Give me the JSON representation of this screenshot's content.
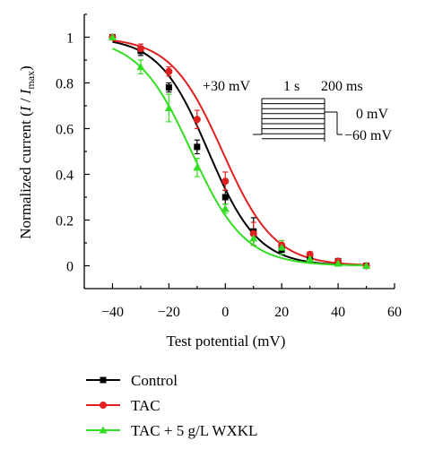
{
  "chart_data": {
    "type": "line",
    "xlabel": "Test potential (mV)",
    "ylabel_main": "Normalized current (",
    "ylabel_I": "I",
    "ylabel_slash": " / ",
    "ylabel_Imax_I": "I",
    "ylabel_Imax_sub": "max",
    "ylabel_end": ")",
    "xlim": [
      -50,
      60
    ],
    "ylim": [
      -0.1,
      1.1
    ],
    "x_ticks": [
      -40,
      -20,
      0,
      20,
      40,
      60
    ],
    "x_tick_labels": [
      "−40",
      "−20",
      "0",
      "20",
      "40",
      "60"
    ],
    "y_ticks": [
      0,
      0.2,
      0.4,
      0.6,
      0.8,
      1
    ],
    "y_tick_labels": [
      "0",
      "0.2",
      "0.4",
      "0.6",
      "0.8",
      "1"
    ],
    "x": [
      -40,
      -30,
      -20,
      -10,
      0,
      10,
      20,
      30,
      40,
      50
    ],
    "series": [
      {
        "name": "Control",
        "color": "#000000",
        "marker": "square",
        "values": [
          1.0,
          0.94,
          0.78,
          0.52,
          0.3,
          0.15,
          0.07,
          0.04,
          0.02,
          0.0
        ],
        "errors": [
          0.01,
          0.02,
          0.02,
          0.03,
          0.03,
          0.06,
          0.02,
          0.01,
          0.01,
          0.01
        ],
        "fit_v_half": -6,
        "fit_k": 8.8
      },
      {
        "name": "TAC",
        "color": "#e02020",
        "marker": "circle",
        "values": [
          1.0,
          0.95,
          0.85,
          0.64,
          0.37,
          0.14,
          0.09,
          0.05,
          0.02,
          0.0
        ],
        "errors": [
          0.01,
          0.02,
          0.02,
          0.04,
          0.04,
          0.05,
          0.02,
          0.01,
          0.01,
          0.01
        ],
        "fit_v_half": -1,
        "fit_k": 9.2
      },
      {
        "name": "TAC + 5 g/L WXKL",
        "color": "#33dd22",
        "marker": "triangle",
        "values": [
          1.0,
          0.87,
          0.69,
          0.43,
          0.25,
          0.12,
          0.08,
          0.03,
          0.01,
          0.0
        ],
        "errors": [
          0.01,
          0.03,
          0.06,
          0.04,
          0.02,
          0.03,
          0.03,
          0.01,
          0.01,
          0.01
        ],
        "fit_v_half": -12,
        "fit_k": 9.5
      }
    ],
    "legend_placement": "bottom-left",
    "grid": false,
    "inset": {
      "label_voltage": "+30 mV",
      "label_duration1": "1 s",
      "label_duration2": "200 ms",
      "label_hold": "0 mV",
      "label_base": "−60 mV"
    }
  }
}
